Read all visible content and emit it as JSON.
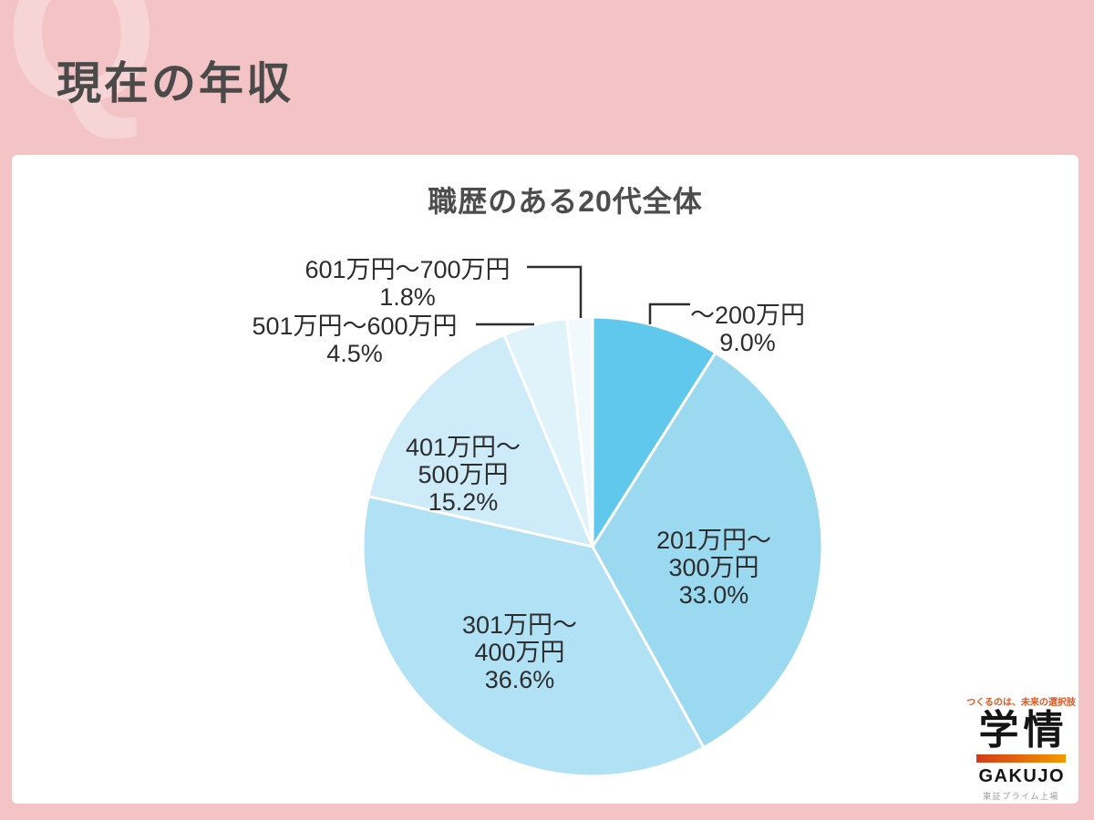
{
  "page": {
    "background_color": "#f3c3c5",
    "watermark": "Q",
    "header_title": "現在の年収"
  },
  "chart_data": {
    "type": "pie",
    "title": "職歴のある20代全体",
    "unit": "%",
    "start_angle_deg": 0,
    "direction": "clockwise",
    "legend_position": "none",
    "slices": [
      {
        "label": "〜200万円",
        "value": 9.0,
        "pct": "9.0%",
        "color": "#5fc8ec",
        "l1": "〜200万円"
      },
      {
        "label": "201万円〜300万円",
        "value": 33.0,
        "pct": "33.0%",
        "color": "#9bd9f0",
        "l1": "201万円〜",
        "l2": "300万円"
      },
      {
        "label": "301万円〜400万円",
        "value": 36.6,
        "pct": "36.6%",
        "color": "#b0e1f4",
        "l1": "301万円〜",
        "l2": "400万円"
      },
      {
        "label": "401万円〜500万円",
        "value": 15.2,
        "pct": "15.2%",
        "color": "#cdebf8",
        "l1": "401万円〜",
        "l2": "500万円"
      },
      {
        "label": "501万円〜600万円",
        "value": 4.5,
        "pct": "4.5%",
        "color": "#e0f2fa",
        "l1": "501万円〜600万円"
      },
      {
        "label": "601万円〜700万円",
        "value": 1.8,
        "pct": "1.8%",
        "color": "#f1f9fd",
        "l1": "601万円〜700万円"
      }
    ],
    "slice_border_color": "#ffffff",
    "leader_line_color": "#2e2e2e",
    "label_text_color": "#2d2d2d"
  },
  "logo": {
    "tagline": "つくるのは、未来の選択肢",
    "tagline_color": "#e8541d",
    "name_jp": "学情",
    "name_en": "GAKUJO",
    "listing": "東証プライム上場",
    "bar_colors": [
      "#d53a18",
      "#f39a00"
    ]
  }
}
